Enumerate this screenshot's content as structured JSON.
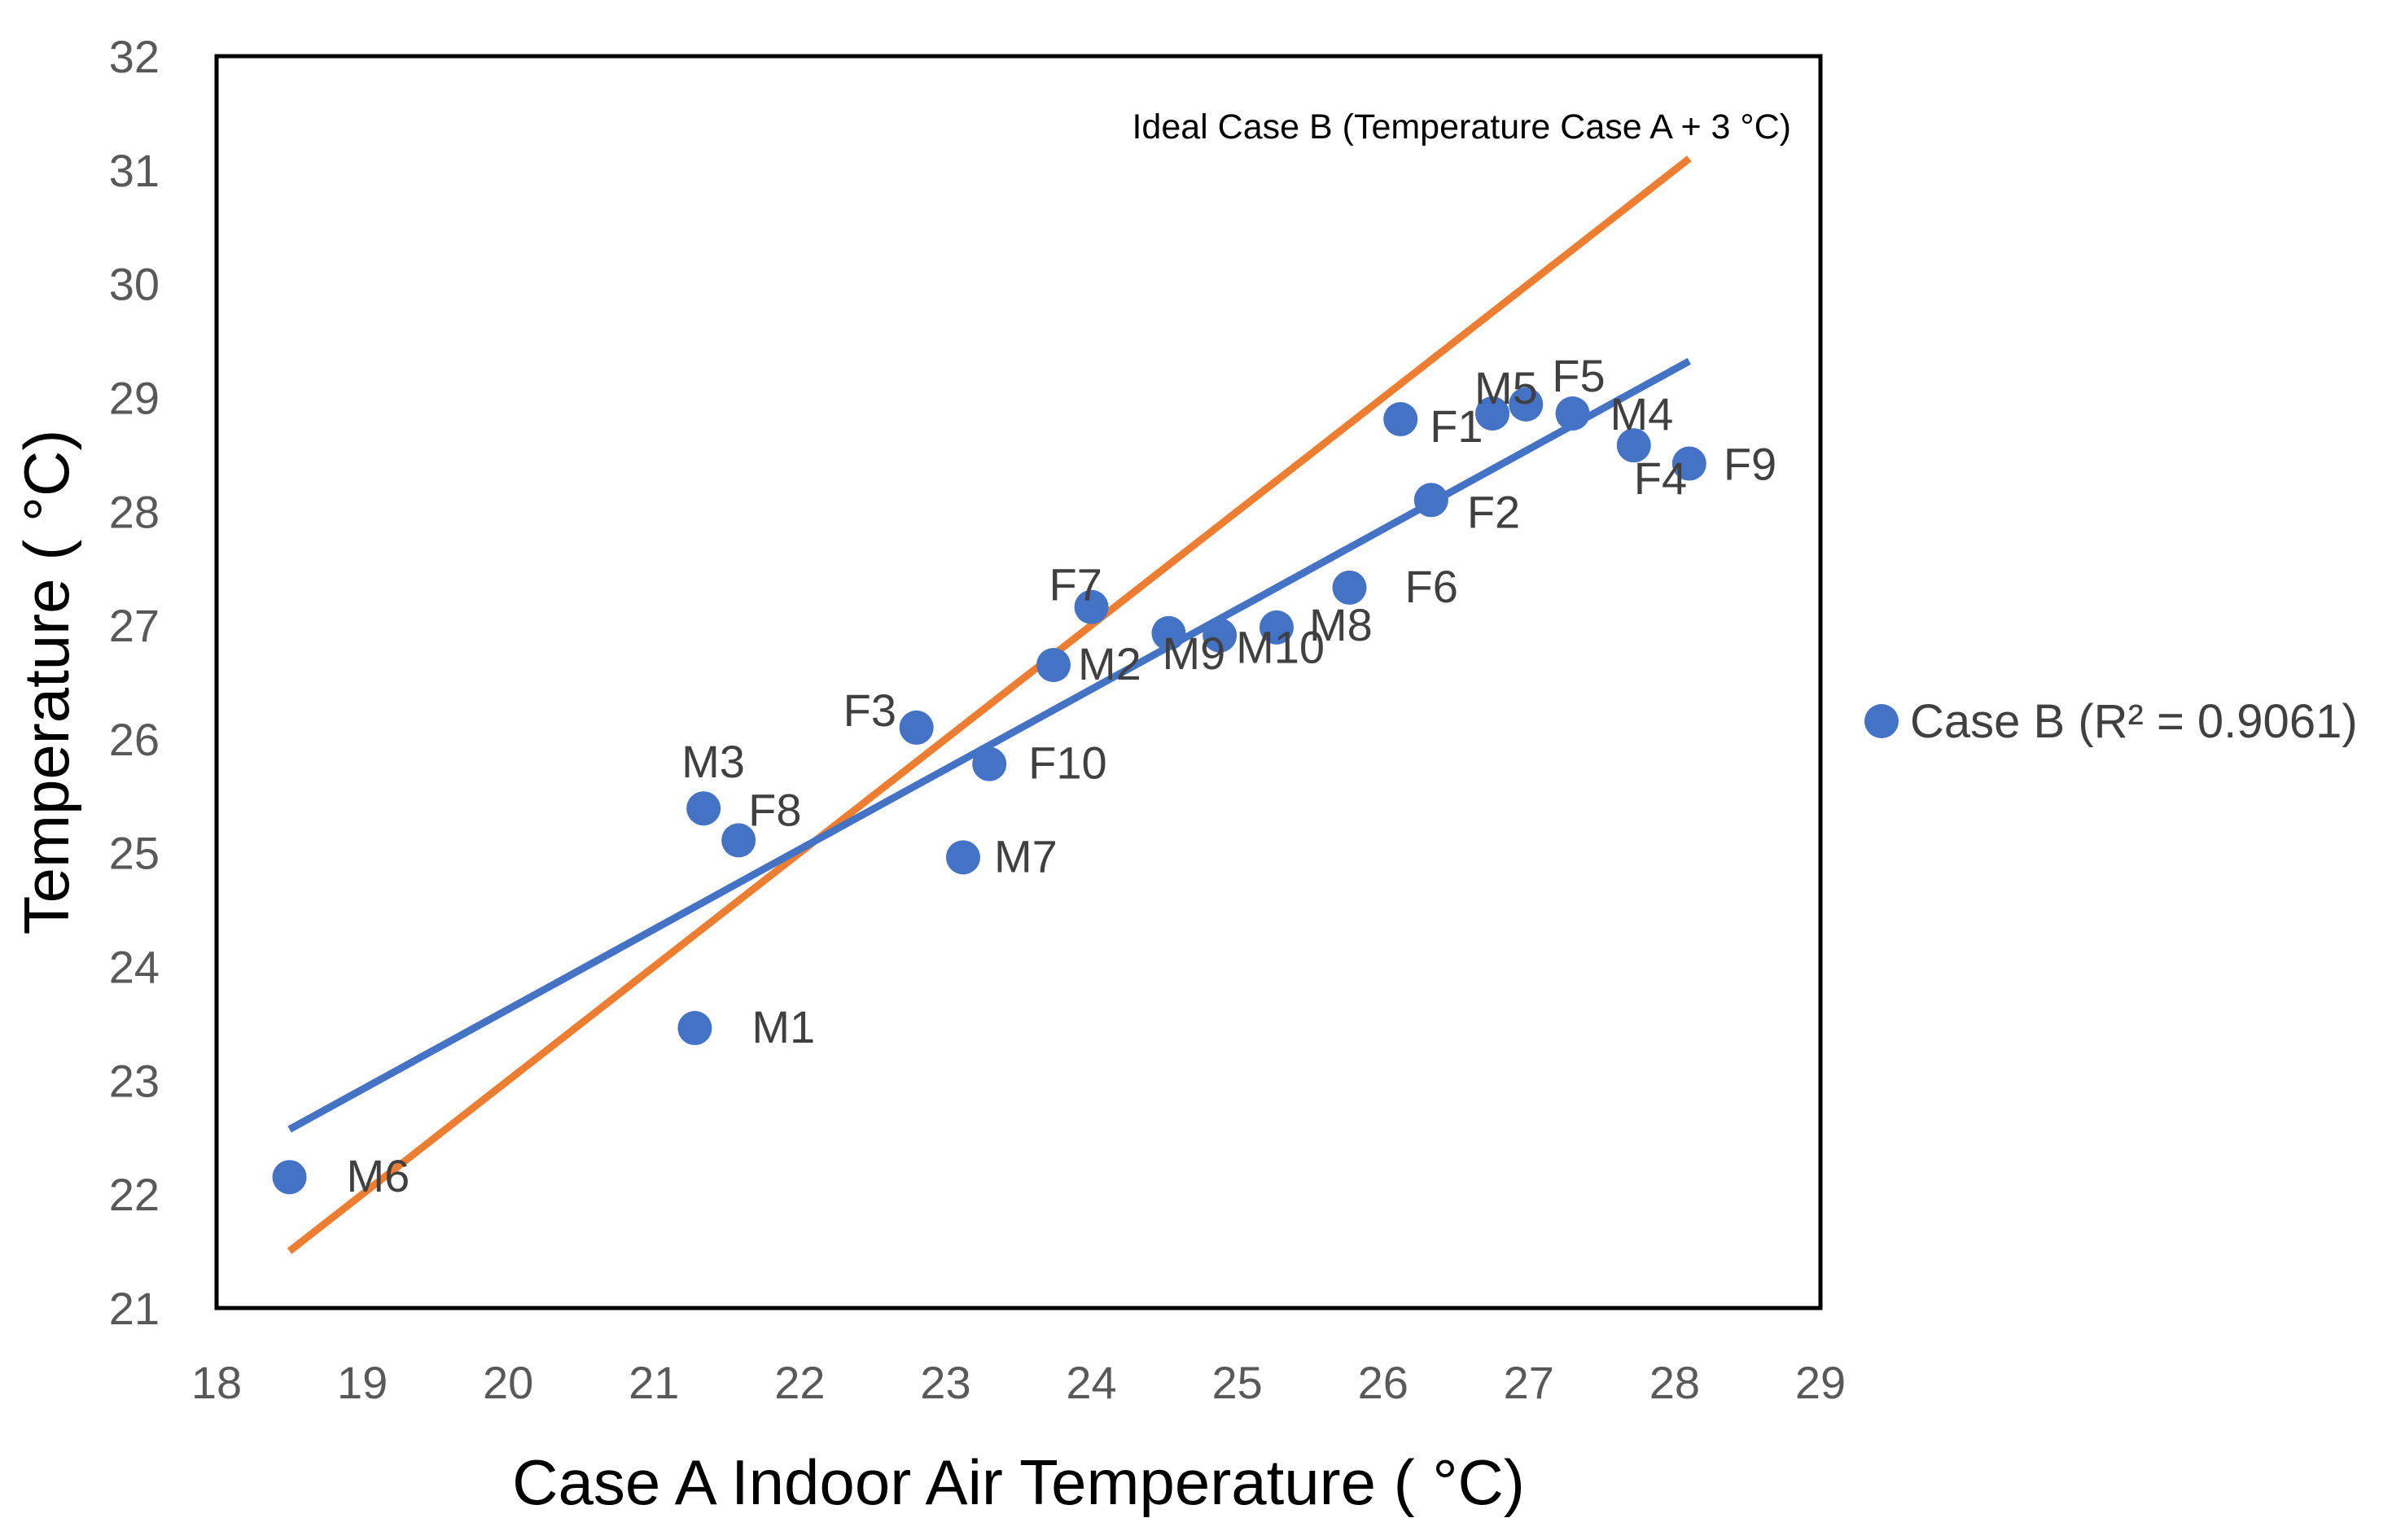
{
  "chart_data": {
    "type": "scatter",
    "xlabel": "Case A Indoor Air Temperature ( °C)",
    "ylabel": "Temperature ( °C)",
    "xlim": [
      18,
      29
    ],
    "ylim": [
      21,
      32
    ],
    "x_ticks": [
      "18",
      "19",
      "20",
      "21",
      "22",
      "23",
      "24",
      "25",
      "26",
      "27",
      "28",
      "29"
    ],
    "y_ticks": [
      "21",
      "22",
      "23",
      "24",
      "25",
      "26",
      "27",
      "28",
      "29",
      "30",
      "31",
      "32"
    ],
    "grid": false,
    "legend_position": "right",
    "series": [
      {
        "name": "Case B (R² = 0.9061)",
        "color": "#4472C4",
        "points": [
          {
            "label": "M6",
            "x": 18.5,
            "y": 22.15
          },
          {
            "label": "M1",
            "x": 21.28,
            "y": 23.46
          },
          {
            "label": "M3",
            "x": 21.34,
            "y": 25.39
          },
          {
            "label": "F8",
            "x": 21.58,
            "y": 25.11
          },
          {
            "label": "F3",
            "x": 22.8,
            "y": 26.1
          },
          {
            "label": "M7",
            "x": 23.12,
            "y": 24.96
          },
          {
            "label": "F10",
            "x": 23.3,
            "y": 25.78
          },
          {
            "label": "M2",
            "x": 23.74,
            "y": 26.65
          },
          {
            "label": "F7",
            "x": 24.0,
            "y": 27.16
          },
          {
            "label": "M9",
            "x": 24.53,
            "y": 26.93
          },
          {
            "label": "M10",
            "x": 24.88,
            "y": 26.91
          },
          {
            "label": "M8",
            "x": 25.27,
            "y": 26.98
          },
          {
            "label": "F6",
            "x": 25.77,
            "y": 27.33
          },
          {
            "label": "F1",
            "x": 26.12,
            "y": 28.81
          },
          {
            "label": "F2",
            "x": 26.33,
            "y": 28.1
          },
          {
            "label": "M5",
            "x": 26.75,
            "y": 28.86
          },
          {
            "label": "F5",
            "x": 26.98,
            "y": 28.94
          },
          {
            "label": "M4",
            "x": 27.3,
            "y": 28.86
          },
          {
            "label": "F4",
            "x": 27.72,
            "y": 28.58
          },
          {
            "label": "F9",
            "x": 28.1,
            "y": 28.42
          }
        ],
        "trendline": {
          "x": [
            18.5,
            28.1
          ],
          "y": [
            22.57,
            29.32
          ]
        }
      },
      {
        "name": "Ideal Case B (Temperature Case A + 3 °C)",
        "type": "line",
        "color": "#ED7D31",
        "x": [
          18.5,
          28.1
        ],
        "y": [
          21.5,
          31.1
        ]
      }
    ]
  }
}
